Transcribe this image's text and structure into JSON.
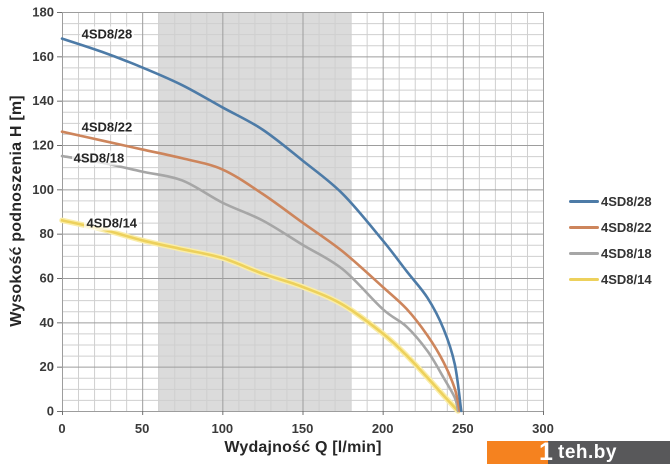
{
  "chart_data": {
    "type": "line",
    "title": "",
    "xlabel": "Wydajność Q [l/min]",
    "ylabel": "Wysokość podnoszenia H [m]",
    "xlim": [
      0,
      300
    ],
    "ylim": [
      0,
      180
    ],
    "x_tick_step": 50,
    "x_minor_step": 10,
    "y_tick_step": 20,
    "y_minor_step": 5,
    "grid": "on",
    "legend_position": "right-outside",
    "duty_band": {
      "x_from": 60,
      "x_to": 180,
      "color": "#dbdbdb"
    },
    "series": [
      {
        "name": "4SD8/28",
        "color": "#4d7ba7",
        "label_at": {
          "q": 11,
          "h": 170
        },
        "points": [
          [
            0,
            168
          ],
          [
            25,
            162
          ],
          [
            50,
            155
          ],
          [
            75,
            147
          ],
          [
            100,
            137
          ],
          [
            125,
            127
          ],
          [
            150,
            113
          ],
          [
            175,
            98
          ],
          [
            200,
            77
          ],
          [
            215,
            63
          ],
          [
            228,
            51
          ],
          [
            238,
            37
          ],
          [
            245,
            21
          ],
          [
            249,
            0
          ]
        ]
      },
      {
        "name": "4SD8/22",
        "color": "#cd855c",
        "label_at": {
          "q": 11,
          "h": 128
        },
        "points": [
          [
            0,
            126
          ],
          [
            25,
            122
          ],
          [
            50,
            118
          ],
          [
            75,
            114
          ],
          [
            100,
            109
          ],
          [
            125,
            98
          ],
          [
            150,
            85
          ],
          [
            175,
            72
          ],
          [
            200,
            56
          ],
          [
            215,
            46
          ],
          [
            228,
            34
          ],
          [
            238,
            22
          ],
          [
            245,
            10
          ],
          [
            248,
            0
          ]
        ]
      },
      {
        "name": "4SD8/18",
        "color": "#a6a6a6",
        "label_at": {
          "q": 6,
          "h": 114
        },
        "points": [
          [
            0,
            115
          ],
          [
            25,
            112
          ],
          [
            50,
            108
          ],
          [
            75,
            104
          ],
          [
            100,
            94
          ],
          [
            125,
            86
          ],
          [
            150,
            75
          ],
          [
            175,
            64
          ],
          [
            200,
            46
          ],
          [
            215,
            38
          ],
          [
            228,
            27
          ],
          [
            238,
            15
          ],
          [
            245,
            6
          ],
          [
            247,
            0
          ]
        ]
      },
      {
        "name": "4SD8/14",
        "color": "#edd15c",
        "halo": "#faeda8",
        "label_at": {
          "q": 14,
          "h": 85
        },
        "points": [
          [
            0,
            86
          ],
          [
            25,
            82
          ],
          [
            50,
            77
          ],
          [
            75,
            73
          ],
          [
            100,
            69
          ],
          [
            125,
            62
          ],
          [
            150,
            56
          ],
          [
            175,
            48
          ],
          [
            200,
            35
          ],
          [
            215,
            25
          ],
          [
            228,
            15
          ],
          [
            238,
            7
          ],
          [
            247,
            0
          ]
        ]
      }
    ]
  },
  "watermark": {
    "prefix": "1",
    "text": "teh.by",
    "orange": "#f5821f",
    "dark": "#58585a"
  }
}
